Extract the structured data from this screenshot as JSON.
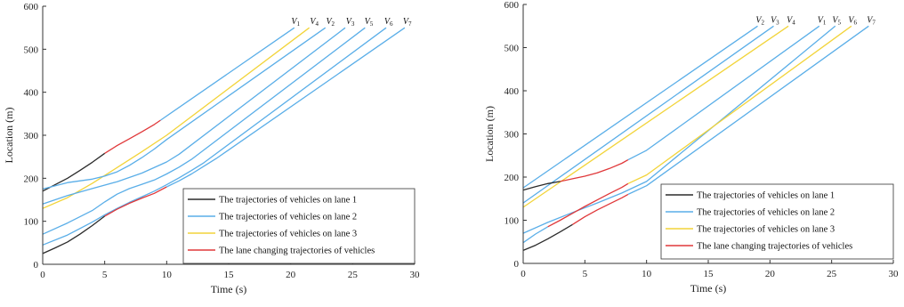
{
  "colors": {
    "lane1": "#2b2b2b",
    "lane2": "#5aaee8",
    "lane3": "#f2d43a",
    "lanechange": "#e0383a"
  },
  "chart_data": [
    {
      "type": "line",
      "xlabel": "Time (s)",
      "ylabel": "Location (m)",
      "xlim": [
        0,
        30
      ],
      "ylim": [
        0,
        600
      ],
      "xticks": [
        "0",
        "5",
        "10",
        "15",
        "20",
        "25",
        "30"
      ],
      "yticks": [
        "0",
        "100",
        "200",
        "300",
        "400",
        "500",
        "600"
      ],
      "grid": false,
      "legend_position": "bottom-right",
      "legend": [
        {
          "label": "The trajectories of vehicles on lane 1",
          "color": "#2b2b2b"
        },
        {
          "label": "The trajectories of vehicles on lane 2",
          "color": "#5aaee8"
        },
        {
          "label": "The trajectories of vehicles on lane 3",
          "color": "#f2d43a"
        },
        {
          "label": "The lane changing trajectories of vehicles",
          "color": "#e0383a"
        }
      ],
      "vehicle_labels": [
        {
          "base": "V",
          "sub": "1",
          "x": 20.4
        },
        {
          "base": "V",
          "sub": "4",
          "x": 21.9
        },
        {
          "base": "V",
          "sub": "2",
          "x": 23.2
        },
        {
          "base": "V",
          "sub": "3",
          "x": 24.8
        },
        {
          "base": "V",
          "sub": "5",
          "x": 26.3
        },
        {
          "base": "V",
          "sub": "6",
          "x": 27.9
        },
        {
          "base": "V",
          "sub": "7",
          "x": 29.4
        }
      ],
      "series": [
        {
          "segments": [
            {
              "lane": "lane1",
              "points": [
                [
                  0,
                  170
                ],
                [
                  1,
                  185
                ],
                [
                  2,
                  200
                ],
                [
                  3,
                  218
                ],
                [
                  4,
                  237
                ],
                [
                  5,
                  258
                ]
              ]
            },
            {
              "lane": "lanechange",
              "points": [
                [
                  5,
                  258
                ],
                [
                  6,
                  276
                ],
                [
                  7,
                  292
                ],
                [
                  8,
                  308
                ],
                [
                  9,
                  325
                ],
                [
                  9.5,
                  335
                ]
              ]
            },
            {
              "lane": "lane2",
              "points": [
                [
                  9.5,
                  335
                ],
                [
                  20.3,
                  550
                ]
              ]
            }
          ]
        },
        {
          "segments": [
            {
              "lane": "lane3",
              "points": [
                [
                  0,
                  130
                ],
                [
                  2,
                  155
                ],
                [
                  4,
                  188
                ],
                [
                  6,
                  225
                ],
                [
                  8,
                  262
                ],
                [
                  10,
                  300
                ],
                [
                  21.5,
                  550
                ]
              ]
            }
          ]
        },
        {
          "segments": [
            {
              "lane": "lane2",
              "points": [
                [
                  0,
                  175
                ],
                [
                  2,
                  190
                ],
                [
                  4,
                  198
                ],
                [
                  5,
                  205
                ],
                [
                  6,
                  215
                ],
                [
                  7,
                  230
                ],
                [
                  8,
                  248
                ],
                [
                  9,
                  268
                ],
                [
                  10,
                  290
                ],
                [
                  22.8,
                  550
                ]
              ]
            }
          ]
        },
        {
          "segments": [
            {
              "lane": "lane2",
              "points": [
                [
                  0,
                  140
                ],
                [
                  2,
                  160
                ],
                [
                  4,
                  176
                ],
                [
                  6,
                  192
                ],
                [
                  8,
                  212
                ],
                [
                  10,
                  238
                ],
                [
                  11,
                  256
                ],
                [
                  24.4,
                  550
                ]
              ]
            }
          ]
        },
        {
          "segments": [
            {
              "lane": "lane2",
              "points": [
                [
                  0,
                  70
                ],
                [
                  2,
                  96
                ],
                [
                  4,
                  125
                ],
                [
                  5,
                  145
                ],
                [
                  6,
                  163
                ],
                [
                  7,
                  176
                ],
                [
                  8,
                  186
                ],
                [
                  9,
                  196
                ],
                [
                  10,
                  210
                ],
                [
                  11,
                  226
                ],
                [
                  12,
                  244
                ],
                [
                  26,
                  550
                ]
              ]
            }
          ]
        },
        {
          "segments": [
            {
              "lane": "lane2",
              "points": [
                [
                  0,
                  45
                ],
                [
                  2,
                  68
                ],
                [
                  4,
                  98
                ],
                [
                  5,
                  115
                ],
                [
                  6,
                  130
                ],
                [
                  7,
                  144
                ],
                [
                  8,
                  157
                ],
                [
                  9,
                  170
                ],
                [
                  10,
                  185
                ],
                [
                  11,
                  201
                ],
                [
                  12,
                  218
                ],
                [
                  13,
                  236
                ],
                [
                  27.7,
                  550
                ]
              ]
            }
          ]
        },
        {
          "segments": [
            {
              "lane": "lane1",
              "points": [
                [
                  0,
                  25
                ],
                [
                  1,
                  38
                ],
                [
                  2,
                  52
                ],
                [
                  3,
                  70
                ],
                [
                  4,
                  90
                ],
                [
                  5,
                  112
                ]
              ]
            },
            {
              "lane": "lanechange",
              "points": [
                [
                  5,
                  112
                ],
                [
                  6,
                  128
                ],
                [
                  7,
                  142
                ],
                [
                  8,
                  154
                ],
                [
                  9,
                  165
                ],
                [
                  10,
                  180
                ]
              ]
            },
            {
              "lane": "lane2",
              "points": [
                [
                  10,
                  180
                ],
                [
                  11,
                  194
                ],
                [
                  12,
                  210
                ],
                [
                  13,
                  228
                ],
                [
                  14,
                  246
                ],
                [
                  29.2,
                  550
                ]
              ]
            }
          ]
        }
      ]
    },
    {
      "type": "line",
      "xlabel": "Time (s)",
      "ylabel": "Location (m)",
      "xlim": [
        0,
        30
      ],
      "ylim": [
        0,
        600
      ],
      "xticks": [
        "0",
        "5",
        "10",
        "15",
        "20",
        "25",
        "30"
      ],
      "yticks": [
        "0",
        "100",
        "200",
        "300",
        "400",
        "500",
        "600"
      ],
      "grid": false,
      "legend_position": "bottom-right",
      "legend": [
        {
          "label": "The trajectories of vehicles on lane 1",
          "color": "#2b2b2b"
        },
        {
          "label": "The trajectories of vehicles on lane 2",
          "color": "#5aaee8"
        },
        {
          "label": "The trajectories of vehicles on lane 3",
          "color": "#f2d43a"
        },
        {
          "label": "The lane changing trajectories of vehicles",
          "color": "#e0383a"
        }
      ],
      "vehicle_labels": [
        {
          "base": "V",
          "sub": "2",
          "x": 19.2
        },
        {
          "base": "V",
          "sub": "3",
          "x": 20.4
        },
        {
          "base": "V",
          "sub": "4",
          "x": 21.7
        },
        {
          "base": "V",
          "sub": "1",
          "x": 24.2
        },
        {
          "base": "V",
          "sub": "5",
          "x": 25.4
        },
        {
          "base": "V",
          "sub": "6",
          "x": 26.7
        },
        {
          "base": "V",
          "sub": "7",
          "x": 28.2
        }
      ],
      "series": [
        {
          "segments": [
            {
              "lane": "lane2",
              "points": [
                [
                  0,
                  175
                ],
                [
                  19,
                  550
                ]
              ]
            }
          ]
        },
        {
          "segments": [
            {
              "lane": "lane2",
              "points": [
                [
                  0,
                  140
                ],
                [
                  20.3,
                  550
                ]
              ]
            }
          ]
        },
        {
          "segments": [
            {
              "lane": "lane3",
              "points": [
                [
                  0,
                  130
                ],
                [
                  21.5,
                  550
                ]
              ]
            }
          ]
        },
        {
          "segments": [
            {
              "lane": "lane1",
              "points": [
                [
                  0,
                  170
                ],
                [
                  1,
                  178
                ],
                [
                  2,
                  185
                ],
                [
                  3,
                  190
                ]
              ]
            },
            {
              "lane": "lanechange",
              "points": [
                [
                  3,
                  190
                ],
                [
                  4,
                  196
                ],
                [
                  5,
                  202
                ],
                [
                  6,
                  210
                ],
                [
                  7,
                  220
                ],
                [
                  8,
                  232
                ],
                [
                  8.5,
                  240
                ]
              ]
            },
            {
              "lane": "lane2",
              "points": [
                [
                  8.5,
                  240
                ],
                [
                  10,
                  262
                ],
                [
                  24,
                  550
                ]
              ]
            }
          ]
        },
        {
          "segments": [
            {
              "lane": "lane2",
              "points": [
                [
                  0,
                  70
                ],
                [
                  2,
                  95
                ],
                [
                  4,
                  118
                ],
                [
                  6,
                  140
                ],
                [
                  8,
                  163
                ],
                [
                  10,
                  190
                ],
                [
                  25.3,
                  550
                ]
              ]
            }
          ]
        },
        {
          "segments": [
            {
              "lane": "lane2",
              "points": [
                [
                  0,
                  48
                ],
                [
                  1,
                  68
                ],
                [
                  2,
                  85
                ]
              ]
            },
            {
              "lane": "lanechange",
              "points": [
                [
                  2,
                  85
                ],
                [
                  3,
                  100
                ],
                [
                  4,
                  116
                ],
                [
                  5,
                  132
                ],
                [
                  6,
                  147
                ],
                [
                  7,
                  162
                ],
                [
                  8,
                  176
                ],
                [
                  8.5,
                  185
                ]
              ]
            },
            {
              "lane": "lane3",
              "points": [
                [
                  8.5,
                  185
                ],
                [
                  10,
                  205
                ],
                [
                  26.6,
                  550
                ]
              ]
            }
          ]
        },
        {
          "segments": [
            {
              "lane": "lane1",
              "points": [
                [
                  0,
                  30
                ],
                [
                  1,
                  42
                ],
                [
                  2,
                  57
                ],
                [
                  3,
                  73
                ],
                [
                  4,
                  90
                ]
              ]
            },
            {
              "lane": "lanechange",
              "points": [
                [
                  4,
                  90
                ],
                [
                  5,
                  108
                ],
                [
                  6,
                  124
                ],
                [
                  7,
                  138
                ],
                [
                  8,
                  152
                ],
                [
                  8.5,
                  160
                ]
              ]
            },
            {
              "lane": "lane2",
              "points": [
                [
                  8.5,
                  160
                ],
                [
                  10,
                  180
                ],
                [
                  28,
                  550
                ]
              ]
            }
          ]
        }
      ]
    }
  ]
}
